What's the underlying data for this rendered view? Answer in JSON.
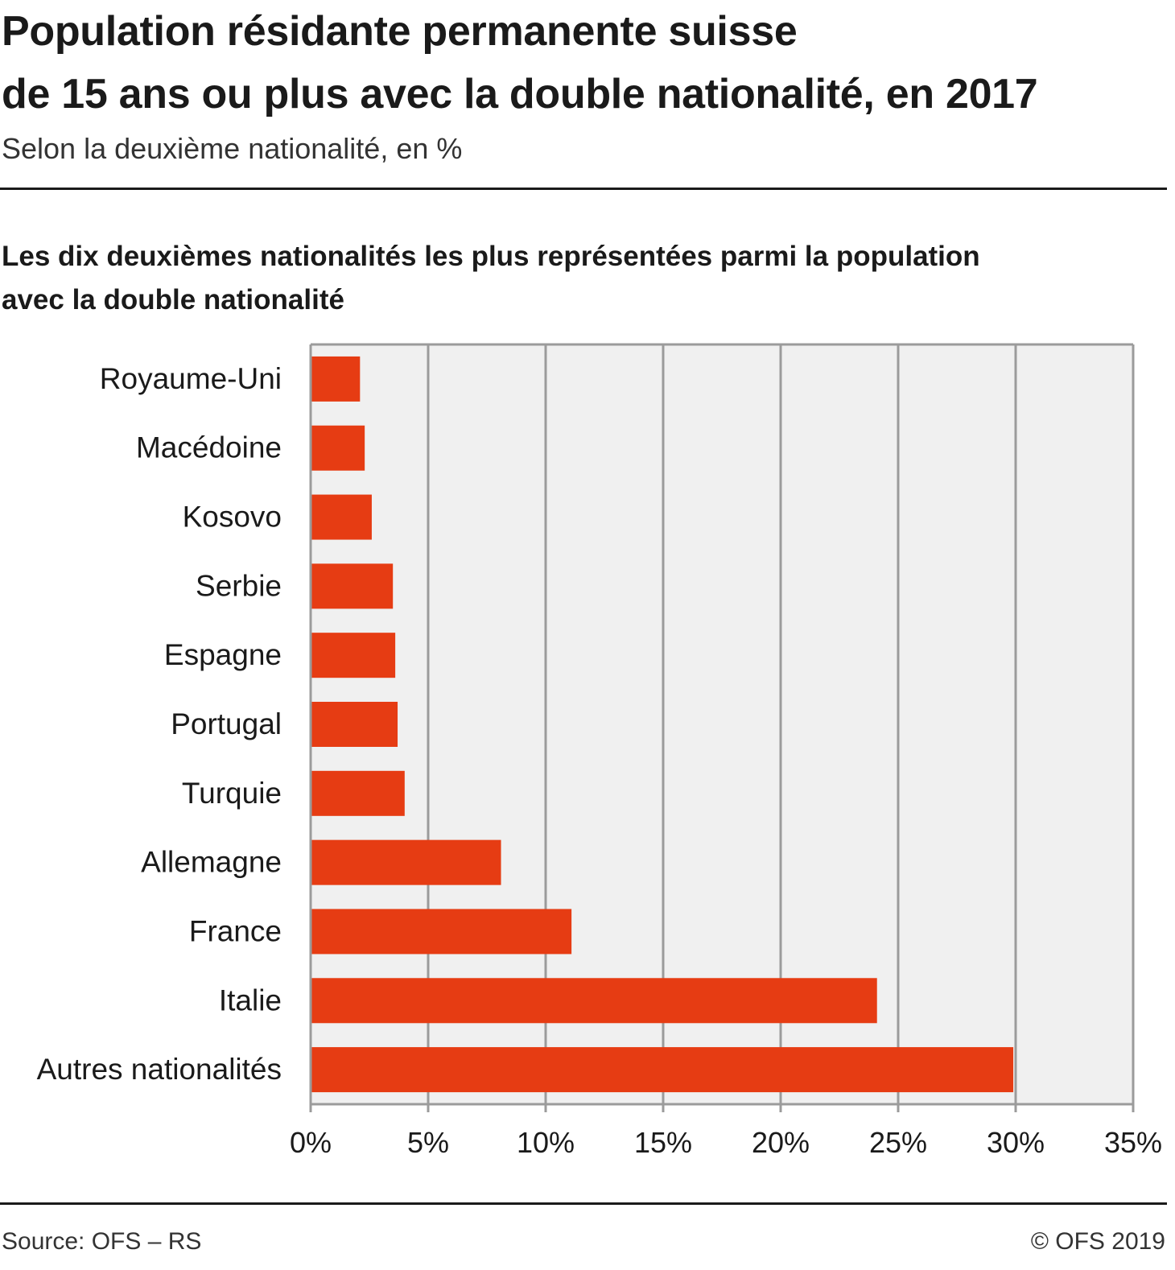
{
  "title_line1": "Population résidante permanente suisse",
  "title_line2": "de 15 ans ou plus avec la double nationalité, en 2017",
  "subtitle": "Selon la deuxième nationalité, en %",
  "footer": {
    "source": "Source: OFS – RS",
    "copyright": "© OFS 2019"
  },
  "colors": {
    "bar": "#e63c13",
    "plot_bg": "#f0f0f0",
    "grid": "#9b9b9b"
  },
  "chart_data": {
    "type": "bar",
    "orientation": "horizontal",
    "title_line1": "Les dix deuxièmes nationalités les plus représentées parmi la population",
    "title_line2": "avec la double nationalité",
    "categories": [
      "Royaume-Uni",
      "Macédoine",
      "Kosovo",
      "Serbie",
      "Espagne",
      "Portugal",
      "Turquie",
      "Allemagne",
      "France",
      "Italie",
      "Autres nationalités"
    ],
    "values": [
      2.1,
      2.3,
      2.6,
      3.5,
      3.6,
      3.7,
      4.0,
      8.1,
      11.1,
      24.1,
      29.9
    ],
    "xlim": [
      0,
      35
    ],
    "xticks": [
      0,
      5,
      10,
      15,
      20,
      25,
      30,
      35
    ],
    "xtick_labels": [
      "0%",
      "5%",
      "10%",
      "15%",
      "20%",
      "25%",
      "30%",
      "35%"
    ],
    "grid": true
  }
}
